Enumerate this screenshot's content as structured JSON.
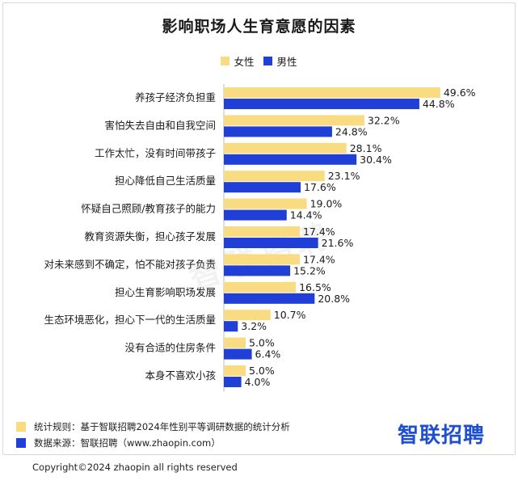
{
  "chart_data": {
    "type": "bar",
    "orientation": "horizontal",
    "title": "影响职场人生育意愿的因素",
    "categories": [
      "养孩子经济负担重",
      "害怕失去自由和自我空间",
      "工作太忙，没有时间带孩子",
      "担心降低自己生活质量",
      "怀疑自己照顾/教育孩子的能力",
      "教育资源失衡，担心孩子发展",
      "对未来感到不确定，怕不能对孩子负责",
      "担心生育影响职场发展",
      "生态环境恶化，担心下一代的生活质量",
      "没有合适的住房条件",
      "本身不喜欢小孩"
    ],
    "series": [
      {
        "name": "女性",
        "color": "#f9dc82",
        "values": [
          49.6,
          32.2,
          28.1,
          23.1,
          19.0,
          17.4,
          17.4,
          16.5,
          10.7,
          5.0,
          5.0
        ],
        "labels": [
          "49.6%",
          "32.2%",
          "28.1%",
          "23.1%",
          "19.0%",
          "17.4%",
          "17.4%",
          "16.5%",
          "10.7%",
          "5.0%",
          "5.0%"
        ]
      },
      {
        "name": "男性",
        "color": "#1f3fd6",
        "values": [
          44.8,
          24.8,
          30.4,
          17.6,
          14.4,
          21.6,
          15.2,
          20.8,
          3.2,
          6.4,
          4.0
        ],
        "labels": [
          "44.8%",
          "24.8%",
          "30.4%",
          "17.6%",
          "14.4%",
          "21.6%",
          "15.2%",
          "20.8%",
          "3.2%",
          "6.4%",
          "4.0%"
        ]
      }
    ],
    "xlim": [
      0,
      50
    ],
    "unit": "%",
    "grid": false,
    "legend_position": "top-center"
  },
  "legend": {
    "female": "女性",
    "male": "男性"
  },
  "footer": {
    "note_1": "统计规则：基于智联招聘2024年性别平等调研数据的统计分析",
    "note_2": "数据来源：智联招聘（www.zhaopin.com）",
    "brand": "智联招聘",
    "watermark": "智联招聘",
    "copyright": "Copyright©2024 zhaopin all rights reserved"
  }
}
